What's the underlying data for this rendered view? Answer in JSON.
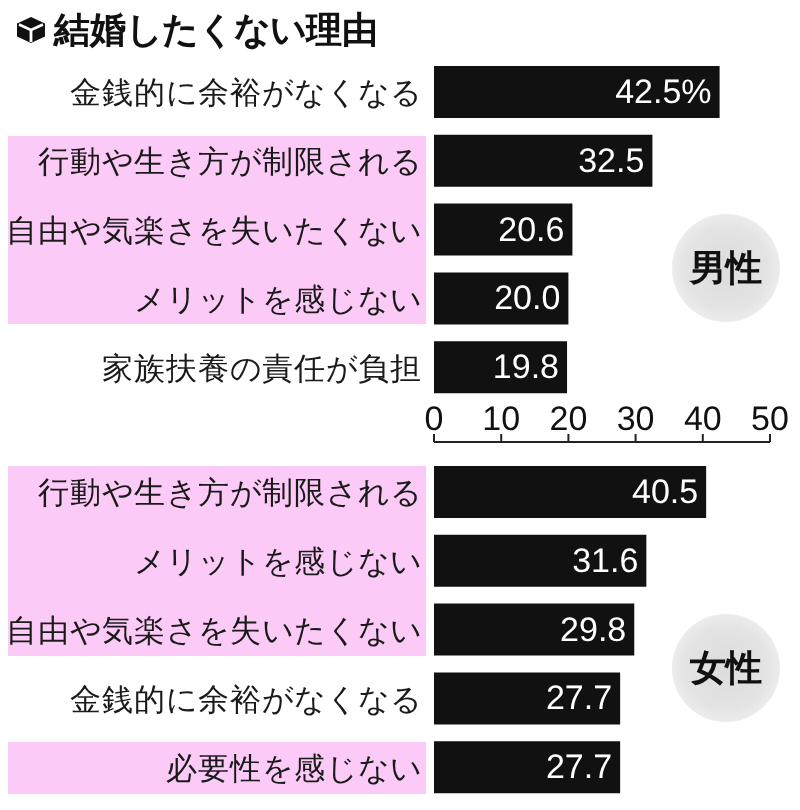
{
  "chart_data": [
    {
      "type": "bar",
      "orientation": "horizontal",
      "title": "結婚したくない理由",
      "categories": [
        "金銭的に余裕がなくなる",
        "行動や生き方が制限される",
        "自由や気楽さを失いたくない",
        "メリットを感じない",
        "家族扶養の責任が負担"
      ],
      "values": [
        42.5,
        32.5,
        20.6,
        20.0,
        19.8
      ],
      "value_labels": [
        "42.5%",
        "32.5",
        "20.6",
        "20.0",
        "19.8"
      ],
      "color": "#111111",
      "xlim": [
        0,
        50
      ],
      "xticks": [
        0,
        10,
        20,
        30,
        40,
        50
      ],
      "tick_labels": "y",
      "annotations": [
        "男性"
      ]
    },
    {
      "type": "bar",
      "orientation": "horizontal",
      "categories": [
        "行動や生き方が制限される",
        "メリットを感じない",
        "自由や気楽さを失いたくない",
        "金銭的に余裕がなくなる",
        "必要性を感じない"
      ],
      "values": [
        40.5,
        31.6,
        29.8,
        27.7,
        27.7
      ],
      "value_labels": [
        "40.5",
        "31.6",
        "29.8",
        "27.7",
        "27.7"
      ],
      "color": "#111111",
      "xlim": [
        0,
        50
      ],
      "xticks": [
        0,
        10,
        20,
        30,
        40,
        50
      ],
      "annotations": [
        "女性"
      ]
    }
  ]
}
